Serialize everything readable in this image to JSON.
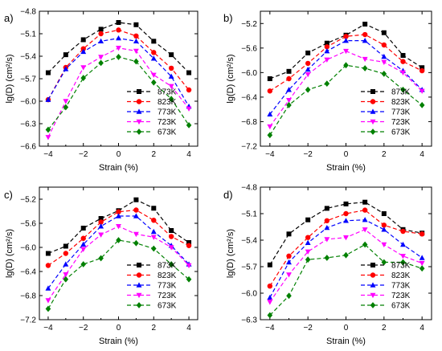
{
  "chart_data": [
    {
      "panel_label": "a)",
      "type": "line",
      "xlabel": "Strain (%)",
      "ylabel": "lg(D) (cm²/s)",
      "xlim": [
        -4.5,
        4.5
      ],
      "ylim": [
        -6.6,
        -4.8
      ],
      "xticks": [
        -4,
        -2,
        0,
        2,
        4
      ],
      "yticks": [
        -4.8,
        -5.1,
        -5.4,
        -5.7,
        -6.0,
        -6.3,
        -6.6
      ],
      "x": [
        -4,
        -3,
        -2,
        -1,
        0,
        1,
        2,
        3,
        4
      ],
      "legend_position": "lower-right",
      "series": [
        {
          "name": "873K",
          "color": "#000000",
          "marker": "square",
          "values": [
            -5.62,
            -5.38,
            -5.18,
            -5.04,
            -4.95,
            -4.98,
            -5.2,
            -5.38,
            -5.62
          ]
        },
        {
          "name": "823K",
          "color": "#ff0000",
          "marker": "circle",
          "values": [
            -5.98,
            -5.55,
            -5.3,
            -5.1,
            -5.05,
            -5.13,
            -5.35,
            -5.56,
            -5.85
          ]
        },
        {
          "name": "773K",
          "color": "#0000ff",
          "marker": "triangle-up",
          "values": [
            -5.98,
            -5.57,
            -5.34,
            -5.2,
            -5.16,
            -5.2,
            -5.43,
            -5.67,
            -6.07
          ]
        },
        {
          "name": "723K",
          "color": "#ff00ff",
          "marker": "triangle-down",
          "values": [
            -6.48,
            -6.0,
            -5.55,
            -5.41,
            -5.29,
            -5.33,
            -5.65,
            -5.8,
            -6.1
          ]
        },
        {
          "name": "673K",
          "color": "#008000",
          "marker": "diamond",
          "values": [
            -6.38,
            -6.08,
            -5.69,
            -5.49,
            -5.41,
            -5.47,
            -5.75,
            -5.97,
            -6.32
          ]
        }
      ]
    },
    {
      "panel_label": "b)",
      "type": "line",
      "xlabel": "Strain (%)",
      "ylabel": "lg(D) (cm²/s)",
      "xlim": [
        -4.5,
        4.5
      ],
      "ylim": [
        -7.2,
        -5.0
      ],
      "xticks": [
        -4,
        -2,
        0,
        2,
        4
      ],
      "yticks": [
        -5.2,
        -5.6,
        -6.0,
        -6.4,
        -6.8,
        -7.2
      ],
      "x": [
        -4,
        -3,
        -2,
        -1,
        0,
        1,
        2,
        3,
        4
      ],
      "legend_position": "lower-right",
      "series": [
        {
          "name": "873K",
          "color": "#000000",
          "marker": "square",
          "values": [
            -6.1,
            -5.98,
            -5.68,
            -5.52,
            -5.39,
            -5.21,
            -5.35,
            -5.72,
            -5.92
          ]
        },
        {
          "name": "823K",
          "color": "#ff0000",
          "marker": "circle",
          "values": [
            -6.3,
            -6.1,
            -5.85,
            -5.58,
            -5.41,
            -5.38,
            -5.55,
            -5.82,
            -5.97
          ]
        },
        {
          "name": "773K",
          "color": "#0000ff",
          "marker": "triangle-up",
          "values": [
            -6.68,
            -6.28,
            -5.95,
            -5.65,
            -5.48,
            -5.48,
            -5.74,
            -5.97,
            -6.28
          ]
        },
        {
          "name": "723K",
          "color": "#ff00ff",
          "marker": "triangle-down",
          "values": [
            -6.88,
            -6.45,
            -6.03,
            -5.79,
            -5.65,
            -5.78,
            -5.83,
            -6.0,
            -6.3
          ]
        },
        {
          "name": "673K",
          "color": "#008000",
          "marker": "diamond",
          "values": [
            -7.02,
            -6.53,
            -6.28,
            -6.18,
            -5.88,
            -5.93,
            -6.02,
            -6.28,
            -6.53
          ]
        }
      ]
    },
    {
      "panel_label": "c)",
      "type": "line",
      "xlabel": "Strain (%)",
      "ylabel": "lg(D) (cm²/s)",
      "xlim": [
        -4.5,
        4.5
      ],
      "ylim": [
        -7.2,
        -5.0
      ],
      "xticks": [
        -4,
        -2,
        0,
        2,
        4
      ],
      "yticks": [
        -5.2,
        -5.6,
        -6.0,
        -6.4,
        -6.8,
        -7.2
      ],
      "x": [
        -4,
        -3,
        -2,
        -1,
        0,
        1,
        2,
        3,
        4
      ],
      "legend_position": "lower-right",
      "series": [
        {
          "name": "873K",
          "color": "#000000",
          "marker": "square",
          "values": [
            -6.1,
            -5.98,
            -5.68,
            -5.52,
            -5.39,
            -5.21,
            -5.35,
            -5.72,
            -5.92
          ]
        },
        {
          "name": "823K",
          "color": "#ff0000",
          "marker": "circle",
          "values": [
            -6.3,
            -6.1,
            -5.85,
            -5.58,
            -5.41,
            -5.38,
            -5.55,
            -5.82,
            -5.97
          ]
        },
        {
          "name": "773K",
          "color": "#0000ff",
          "marker": "triangle-up",
          "values": [
            -6.68,
            -6.28,
            -5.95,
            -5.65,
            -5.48,
            -5.48,
            -5.74,
            -5.97,
            -6.28
          ]
        },
        {
          "name": "723K",
          "color": "#ff00ff",
          "marker": "triangle-down",
          "values": [
            -6.88,
            -6.45,
            -6.03,
            -5.79,
            -5.65,
            -5.78,
            -5.83,
            -6.0,
            -6.3
          ]
        },
        {
          "name": "673K",
          "color": "#008000",
          "marker": "diamond",
          "values": [
            -7.02,
            -6.53,
            -6.28,
            -6.18,
            -5.88,
            -5.93,
            -6.02,
            -6.28,
            -6.53
          ]
        }
      ]
    },
    {
      "panel_label": "d)",
      "type": "line",
      "xlabel": "Strain (%)",
      "ylabel": "lg(D) (cm²/s)",
      "xlim": [
        -4.5,
        4.5
      ],
      "ylim": [
        -6.3,
        -4.8
      ],
      "xticks": [
        -4,
        -2,
        0,
        2,
        4
      ],
      "yticks": [
        -4.8,
        -5.1,
        -5.4,
        -5.7,
        -6.0,
        -6.3
      ],
      "x": [
        -4,
        -3,
        -2,
        -1,
        0,
        1,
        2,
        3,
        4
      ],
      "legend_position": "lower-right",
      "series": [
        {
          "name": "873K",
          "color": "#000000",
          "marker": "square",
          "values": [
            -5.68,
            -5.33,
            -5.17,
            -5.04,
            -4.99,
            -4.97,
            -5.1,
            -5.28,
            -5.32
          ]
        },
        {
          "name": "823K",
          "color": "#ff0000",
          "marker": "circle",
          "values": [
            -5.92,
            -5.58,
            -5.37,
            -5.18,
            -5.1,
            -5.06,
            -5.23,
            -5.3,
            -5.33
          ]
        },
        {
          "name": "773K",
          "color": "#0000ff",
          "marker": "triangle-up",
          "values": [
            -6.05,
            -5.65,
            -5.43,
            -5.26,
            -5.18,
            -5.17,
            -5.28,
            -5.45,
            -5.6
          ]
        },
        {
          "name": "723K",
          "color": "#ff00ff",
          "marker": "triangle-down",
          "values": [
            -6.1,
            -5.79,
            -5.53,
            -5.39,
            -5.37,
            -5.28,
            -5.45,
            -5.58,
            -5.66
          ]
        },
        {
          "name": "673K",
          "color": "#008000",
          "marker": "diamond",
          "values": [
            -6.25,
            -6.03,
            -5.62,
            -5.6,
            -5.57,
            -5.45,
            -5.65,
            -5.65,
            -5.72
          ]
        }
      ]
    }
  ]
}
